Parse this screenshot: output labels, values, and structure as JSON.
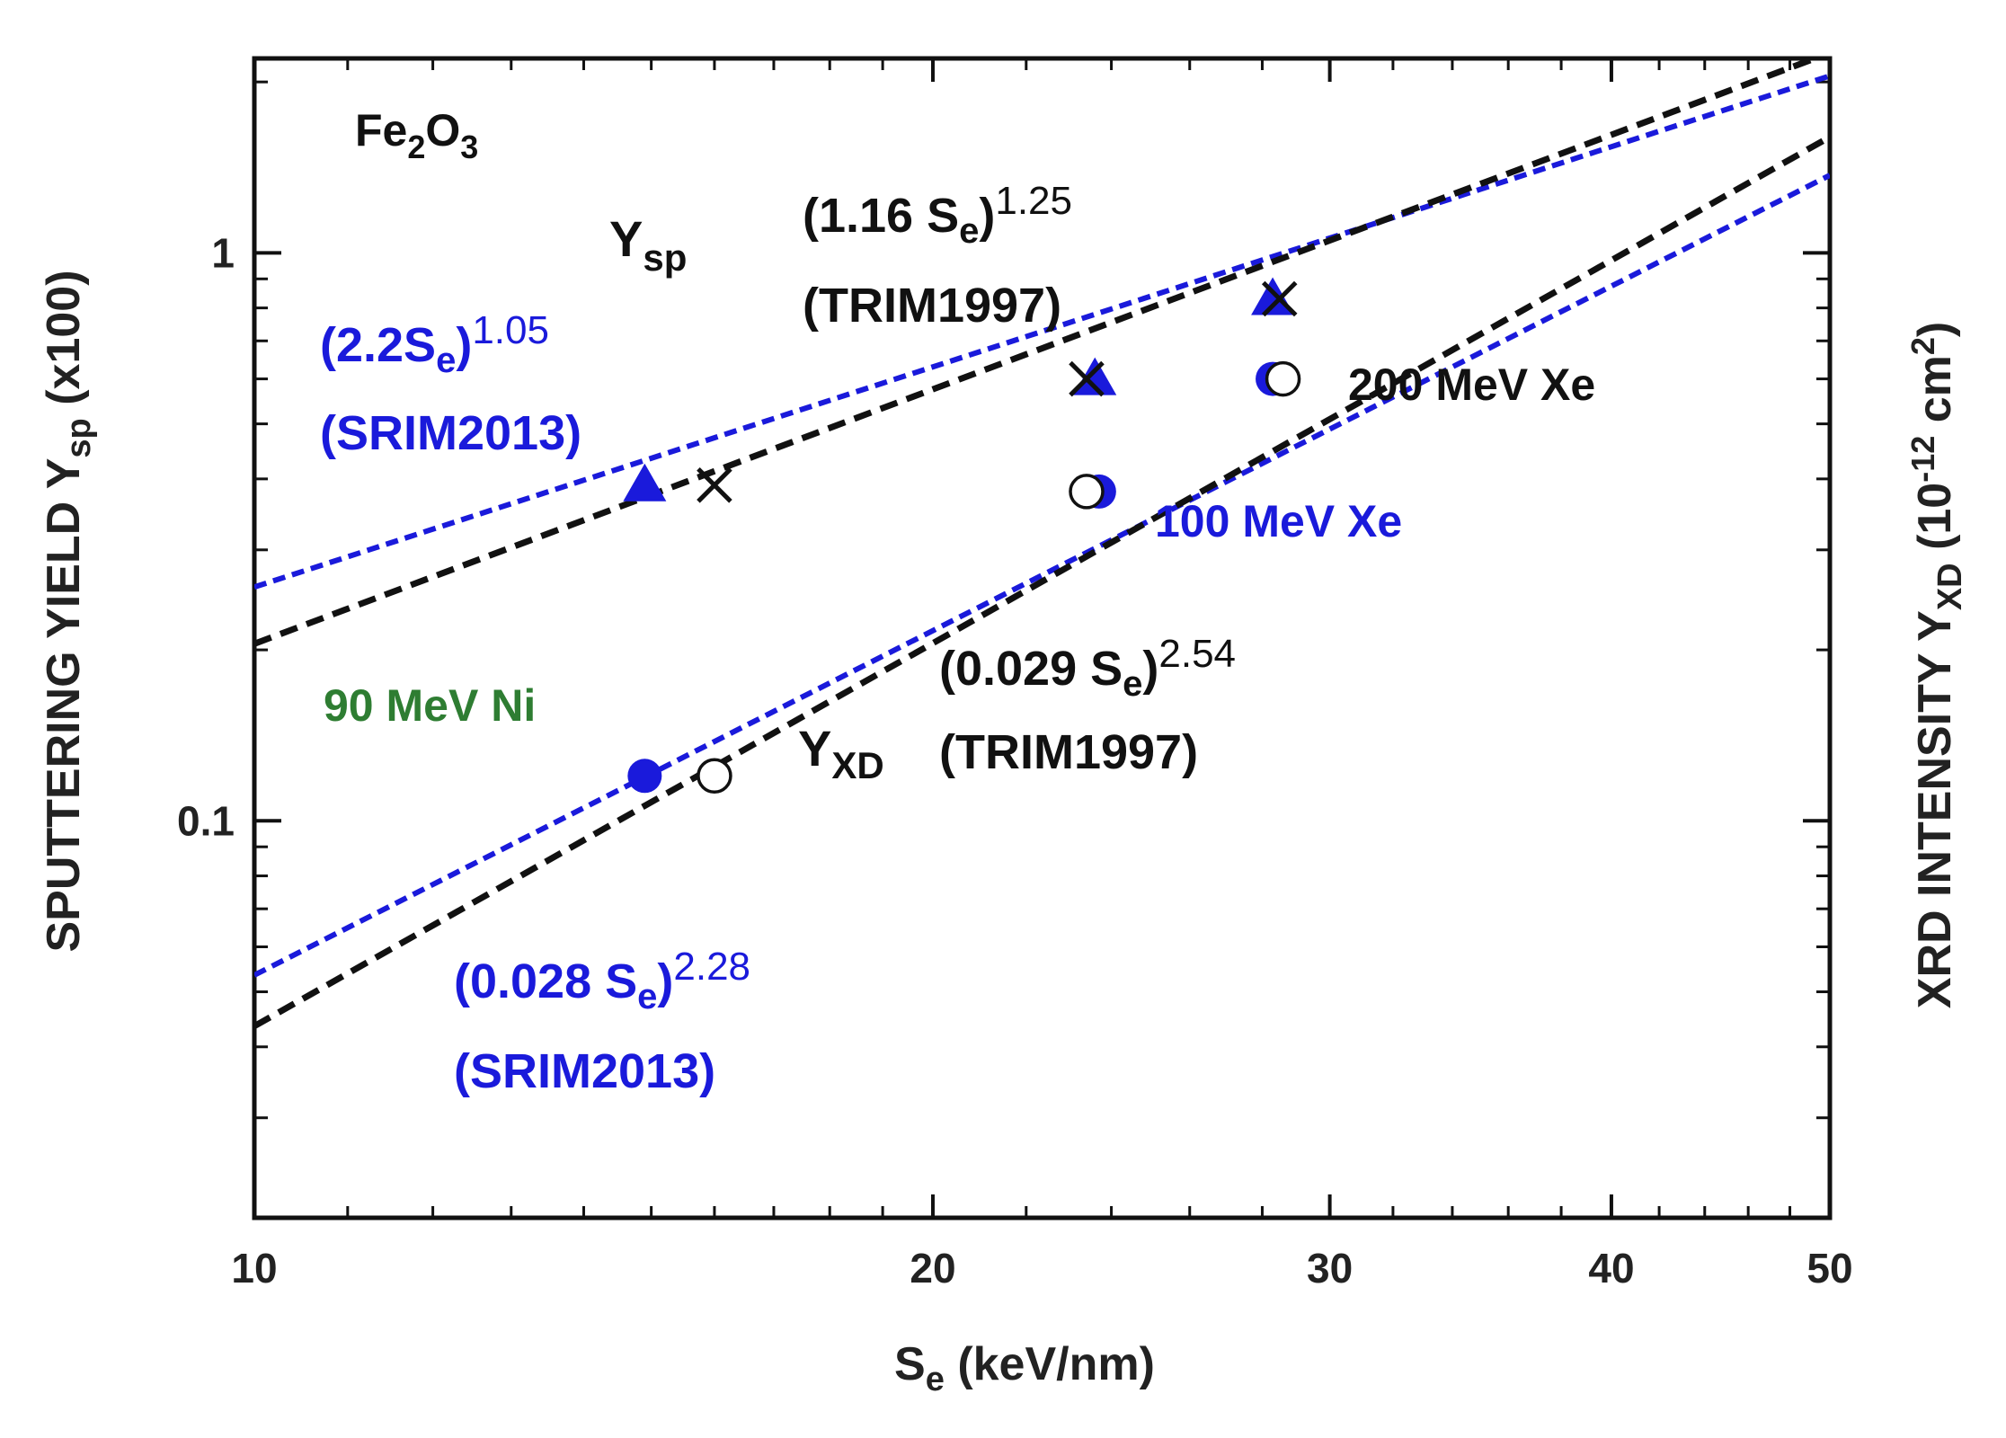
{
  "chart_data": {
    "type": "scatter",
    "title": "",
    "xlabel": {
      "main": "S",
      "sub": "e",
      "rest": "  (keV/nm)"
    },
    "ylabel_left": {
      "main": "SPUTTERING  YIELD  Y",
      "sub": "sp",
      "rest": "  (x100)"
    },
    "ylabel_right": {
      "main": "XRD  INTENSITY  Y",
      "sub": "XD",
      "pre_sup": "  (10",
      "sup": "-12",
      "mid": " cm",
      "sup2": "2",
      "post": ")"
    },
    "xscale": "log",
    "yscale": "log",
    "xlim": [
      10,
      50
    ],
    "ylim": [
      0.02,
      2.2
    ],
    "x_ticks": [
      10,
      20,
      30,
      40,
      50
    ],
    "x_tick_labels": [
      "10",
      "20",
      "30",
      "40",
      "50"
    ],
    "y_ticks": [
      0.1,
      1
    ],
    "y_tick_labels": [
      "0.1",
      "1"
    ],
    "colors": {
      "black": "#111111",
      "blue": "#1a1adb",
      "green": "#2e7d32"
    },
    "series": [
      {
        "name": "Ysp SRIM2013",
        "marker": "triangle",
        "color": "#1a1adb",
        "x": [
          14.9,
          23.6,
          28.3
        ],
        "y": [
          0.39,
          0.6,
          0.83
        ]
      },
      {
        "name": "Ysp TRIM1997",
        "marker": "cross",
        "color": "#111111",
        "x": [
          16.0,
          23.4,
          28.5
        ],
        "y": [
          0.39,
          0.6,
          0.83
        ]
      },
      {
        "name": "YXD SRIM2013",
        "marker": "filled-circle",
        "color": "#1a1adb",
        "x": [
          14.9,
          23.7,
          28.3
        ],
        "y": [
          0.12,
          0.38,
          0.6
        ]
      },
      {
        "name": "YXD TRIM1997",
        "marker": "open-circle",
        "color": "#111111",
        "x": [
          16.0,
          23.4,
          28.6
        ],
        "y": [
          0.12,
          0.38,
          0.6
        ]
      }
    ],
    "fit_lines": [
      {
        "name": "Ysp SRIM2013 fit",
        "color": "#1a1adb",
        "x": [
          10,
          50
        ],
        "y": [
          0.258,
          2.05
        ]
      },
      {
        "name": "Ysp TRIM1997 fit",
        "color": "#111111",
        "x": [
          10,
          50
        ],
        "y": [
          0.205,
          2.25
        ]
      },
      {
        "name": "YXD SRIM2013 fit",
        "color": "#1a1adb",
        "x": [
          10,
          50
        ],
        "y": [
          0.0535,
          1.37
        ]
      },
      {
        "name": "YXD TRIM1997 fit",
        "color": "#111111",
        "x": [
          10,
          50
        ],
        "y": [
          0.0435,
          1.6
        ]
      }
    ],
    "annotations": {
      "material": {
        "a": "Fe",
        "b": "2",
        "c": "O",
        "d": "3"
      },
      "ysp_label": {
        "main": "Y",
        "sub": "sp"
      },
      "yxd_label": {
        "main": "Y",
        "sub": "XD"
      },
      "ysp_trim_formula": {
        "pre": "(1.16 S",
        "sub": "e",
        "post": ")",
        "sup": "1.25"
      },
      "ysp_trim_src": "(TRIM1997)",
      "ysp_srim_formula": {
        "pre": "(2.2S",
        "sub": "e",
        "post": ")",
        "sup": "1.05"
      },
      "ysp_srim_src": "(SRIM2013)",
      "yxd_trim_formula": {
        "pre": "(0.029 S",
        "sub": "e",
        "post": ")",
        "sup": "2.54"
      },
      "yxd_trim_src": "(TRIM1997)",
      "yxd_srim_formula": {
        "pre": "(0.028 S",
        "sub": "e",
        "post": ")",
        "sup": "2.28"
      },
      "yxd_srim_src": "(SRIM2013)",
      "ion_200": "200  MeV  Xe",
      "ion_100": "100 MeV  Xe",
      "ion_90": "90  MeV  Ni"
    }
  }
}
